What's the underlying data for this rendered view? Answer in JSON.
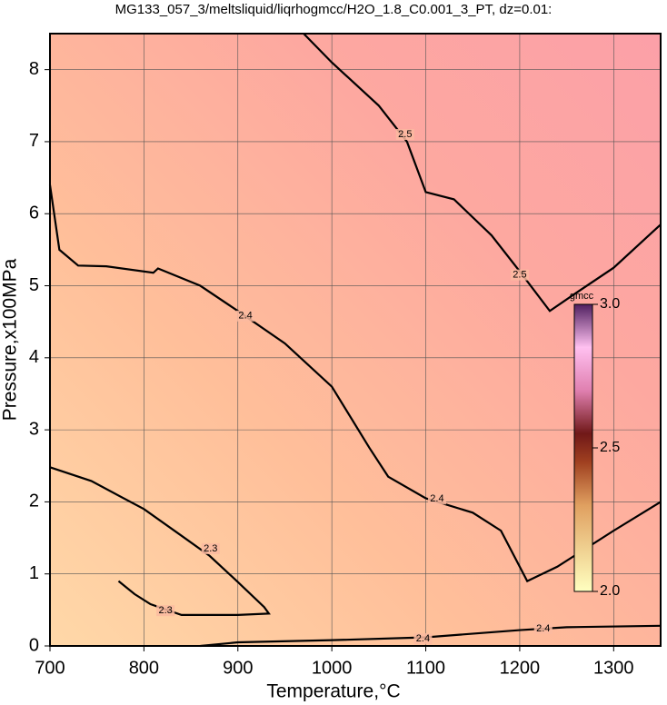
{
  "chart_data": {
    "type": "contour",
    "title": "MG133_057_3/meltsliquid/liqrhogmcc/H2O_1.8_C0.001_3_PT, dz=0.01:",
    "x_label": "Temperature,°C",
    "y_label": "Pressure,x100MPa",
    "xlim": [
      700,
      1350
    ],
    "ylim": [
      0,
      8.5
    ],
    "xticks": [
      700,
      800,
      900,
      1000,
      1100,
      1200,
      1300
    ],
    "yticks": [
      0,
      1,
      2,
      3,
      4,
      5,
      6,
      7,
      8
    ],
    "grid": true,
    "contours": [
      {
        "level": 2.5,
        "x": [
          970,
          1000,
          1050,
          1080,
          1100,
          1130,
          1170,
          1200,
          1232,
          1260,
          1300,
          1350
        ],
        "y": [
          8.5,
          8.1,
          7.5,
          7.0,
          6.3,
          6.2,
          5.7,
          5.2,
          4.65,
          4.9,
          5.25,
          5.85
        ],
        "label_at": [
          [
            1078,
            7.1
          ],
          [
            1200,
            5.15
          ]
        ]
      },
      {
        "level": 2.4,
        "x": [
          700,
          710,
          730,
          760,
          810,
          815,
          860,
          900,
          950,
          1000,
          1040,
          1060,
          1100,
          1150,
          1180,
          1208,
          1240,
          1300,
          1350
        ],
        "y": [
          6.4,
          5.5,
          5.28,
          5.27,
          5.18,
          5.24,
          5.0,
          4.65,
          4.2,
          3.6,
          2.75,
          2.35,
          2.05,
          1.85,
          1.6,
          0.9,
          1.1,
          1.6,
          2.0
        ],
        "label_at": [
          [
            908,
            4.58
          ],
          [
            1112,
            2.04
          ]
        ]
      },
      {
        "level": 2.4,
        "x": [
          860,
          900,
          1000,
          1100,
          1200,
          1250,
          1350
        ],
        "y": [
          0.0,
          0.05,
          0.08,
          0.12,
          0.22,
          0.26,
          0.28
        ],
        "label_at": [
          [
            1097,
            0.1
          ],
          [
            1225,
            0.24
          ]
        ]
      },
      {
        "level": 2.3,
        "x": [
          700,
          744,
          800,
          840,
          870,
          899,
          928,
          933,
          900,
          840,
          807,
          790,
          773
        ],
        "y": [
          2.48,
          2.29,
          1.9,
          1.53,
          1.25,
          0.9,
          0.54,
          0.45,
          0.43,
          0.43,
          0.58,
          0.72,
          0.9
        ],
        "label_at": [
          [
            871,
            1.35
          ],
          [
            823,
            0.49
          ]
        ]
      }
    ],
    "colorbar": {
      "label": "gmcc",
      "lim": [
        2.0,
        3.0
      ],
      "ticks": [
        {
          "value": 2.0,
          "label": "2.0"
        },
        2.5,
        {
          "value": 3.0,
          "label": "3.0"
        }
      ]
    }
  }
}
